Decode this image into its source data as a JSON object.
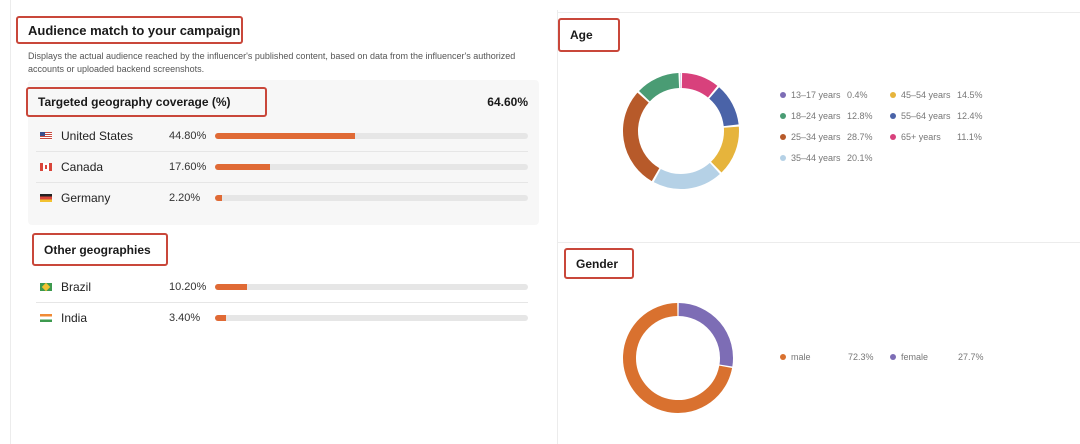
{
  "audience": {
    "title": "Audience match to your campaign",
    "description": "Displays the actual audience reached by the influencer's published content, based on data from the influencer's authorized accounts or uploaded backend screenshots."
  },
  "targeted": {
    "title": "Targeted geography coverage (%)",
    "total": "64.60%",
    "rows": [
      {
        "flag": "us-flag-icon",
        "country": "United States",
        "pct_label": "44.80%",
        "value": 44.8
      },
      {
        "flag": "ca-flag-icon",
        "country": "Canada",
        "pct_label": "17.60%",
        "value": 17.6
      },
      {
        "flag": "de-flag-icon",
        "country": "Germany",
        "pct_label": "2.20%",
        "value": 2.2
      }
    ]
  },
  "other": {
    "title": "Other geographies",
    "rows": [
      {
        "flag": "br-flag-icon",
        "country": "Brazil",
        "pct_label": "10.20%",
        "value": 10.2
      },
      {
        "flag": "in-flag-icon",
        "country": "India",
        "pct_label": "3.40%",
        "value": 3.4
      }
    ]
  },
  "bar_color": "#e06a35",
  "age": {
    "title": "Age",
    "legend": [
      {
        "label": "13–17 years",
        "value_label": "0.4%",
        "value": 0.4,
        "color": "#7d6db5"
      },
      {
        "label": "45–54 years",
        "value_label": "14.5%",
        "value": 14.5,
        "color": "#e6b43c"
      },
      {
        "label": "18–24 years",
        "value_label": "12.8%",
        "value": 12.8,
        "color": "#4a9c74"
      },
      {
        "label": "55–64 years",
        "value_label": "12.4%",
        "value": 12.4,
        "color": "#4a63a8"
      },
      {
        "label": "25–34 years",
        "value_label": "28.7%",
        "value": 28.7,
        "color": "#b75a2a"
      },
      {
        "label": "65+ years",
        "value_label": "11.1%",
        "value": 11.1,
        "color": "#d8417c"
      },
      {
        "label": "35–44 years",
        "value_label": "20.1%",
        "value": 20.1,
        "color": "#b5d1e6"
      }
    ],
    "donut_order": [
      "65+ years",
      "55–64 years",
      "45–54 years",
      "35–44 years",
      "25–34 years",
      "18–24 years",
      "13–17 years"
    ]
  },
  "gender": {
    "title": "Gender",
    "legend": [
      {
        "label": "male",
        "value_label": "72.3%",
        "value": 72.3,
        "color": "#d9712f"
      },
      {
        "label": "female",
        "value_label": "27.7%",
        "value": 27.7,
        "color": "#7d6db5"
      }
    ],
    "donut_order": [
      "female",
      "male"
    ]
  }
}
